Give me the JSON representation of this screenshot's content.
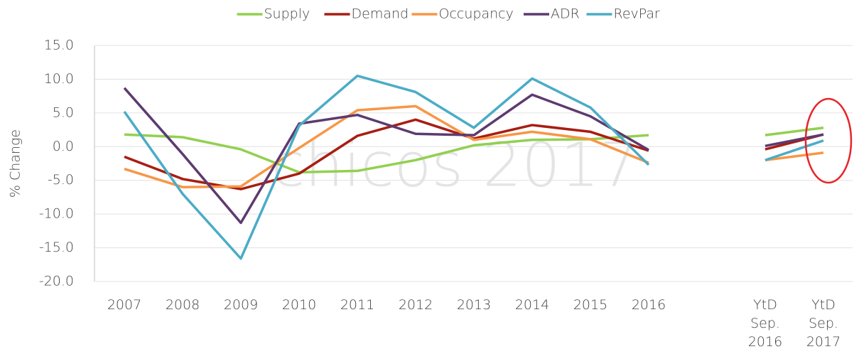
{
  "chart_data": {
    "type": "line",
    "y_label": "% Change",
    "watermark": "chicos 2017",
    "categories": [
      "2007",
      "2008",
      "2009",
      "2010",
      "2011",
      "2012",
      "2013",
      "2014",
      "2015",
      "2016",
      null,
      "YtD Sep. 2016",
      "YtD Sep. 2017"
    ],
    "series": [
      {
        "name": "Supply",
        "color": "#92d050",
        "values": [
          1.8,
          1.4,
          -0.4,
          -3.8,
          -3.6,
          -2.0,
          0.2,
          1.0,
          1.1,
          1.7,
          null,
          1.7,
          2.8
        ]
      },
      {
        "name": "Demand",
        "color": "#a81d12",
        "values": [
          -1.5,
          -4.8,
          -6.3,
          -4.0,
          1.6,
          4.0,
          1.2,
          3.2,
          2.2,
          -0.6,
          null,
          -0.4,
          1.8
        ]
      },
      {
        "name": "Occupancy",
        "color": "#f79646",
        "values": [
          -3.3,
          -6.0,
          -5.9,
          -0.2,
          5.4,
          6.0,
          1.0,
          2.2,
          1.1,
          -2.4,
          null,
          -2.0,
          -0.9
        ]
      },
      {
        "name": "ADR",
        "color": "#5d3a6e",
        "values": [
          8.7,
          -1.1,
          -11.3,
          3.4,
          4.7,
          1.9,
          1.7,
          7.7,
          4.5,
          -0.5,
          null,
          0.1,
          1.8
        ]
      },
      {
        "name": "RevPar",
        "color": "#4bacc6",
        "values": [
          5.2,
          -7.0,
          -16.6,
          3.1,
          10.5,
          8.1,
          2.8,
          10.1,
          5.8,
          -2.7,
          null,
          -2.0,
          0.9
        ]
      }
    ],
    "ylim": [
      -20,
      15
    ],
    "yticks": [
      {
        "value": -20,
        "label": "-20.0"
      },
      {
        "value": -15,
        "label": "-15.0"
      },
      {
        "value": -10,
        "label": "-10.0"
      },
      {
        "value": -5,
        "label": "-5.0"
      },
      {
        "value": 0,
        "label": "0.0"
      },
      {
        "value": 5,
        "label": "5.0"
      },
      {
        "value": 10,
        "label": "10.0"
      },
      {
        "value": 15,
        "label": "15.0"
      }
    ],
    "grid": true,
    "legend": "top"
  }
}
